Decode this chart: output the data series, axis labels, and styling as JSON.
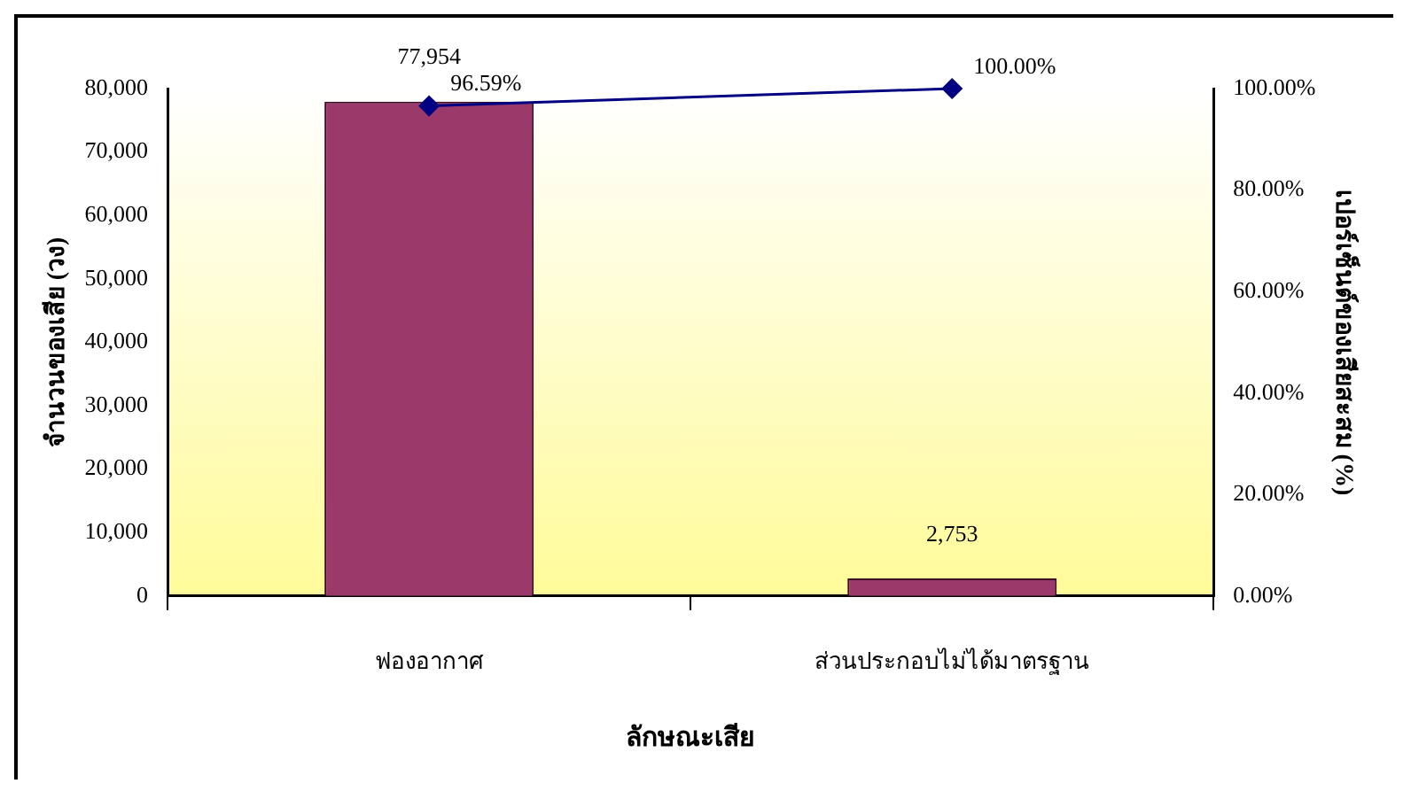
{
  "chart_data": {
    "type": "bar",
    "xlabel": "ลักษณะเสีย",
    "ylabel": "จำนวนของเสีย (วง)",
    "y2label": "เปอร์เซ็นต์ของเสียสะสม (%)",
    "categories": [
      "ฟองอากาศ",
      "ส่วนประกอบไม่ได้มาตรฐาน"
    ],
    "series": [
      {
        "color": "#9b3a6a",
        "values": [
          77954,
          2753
        ],
        "value_labels": [
          "77,954",
          "2,753"
        ]
      },
      {
        "type": "line",
        "axis": "y2",
        "color": "#000080",
        "values": [
          96.59,
          100
        ],
        "value_labels": [
          "96.59%",
          "100.00%"
        ],
        "marker": "diamond"
      }
    ],
    "ylim": [
      0,
      80000
    ],
    "yticks": [
      0,
      {
        "value": 10000,
        "label": "10,000"
      },
      {
        "value": 20000,
        "label": "20,000"
      },
      {
        "value": 30000,
        "label": "30,000"
      },
      {
        "value": 40000,
        "label": "40,000"
      },
      {
        "value": 50000,
        "label": "50,000"
      },
      {
        "value": 60000,
        "label": "60,000"
      },
      {
        "value": 70000,
        "label": "70,000"
      },
      {
        "value": 80000,
        "label": "80,000"
      }
    ],
    "y2lim": [
      0,
      100
    ],
    "y2ticks": [
      {
        "value": 0,
        "label": "0.00%"
      },
      {
        "value": 20,
        "label": "20.00%"
      },
      {
        "value": 40,
        "label": "40.00%"
      },
      {
        "value": 60,
        "label": "60.00%"
      },
      {
        "value": 80,
        "label": "80.00%"
      },
      {
        "value": 100,
        "label": "100.00%"
      }
    ],
    "legend": false,
    "grid": false
  }
}
